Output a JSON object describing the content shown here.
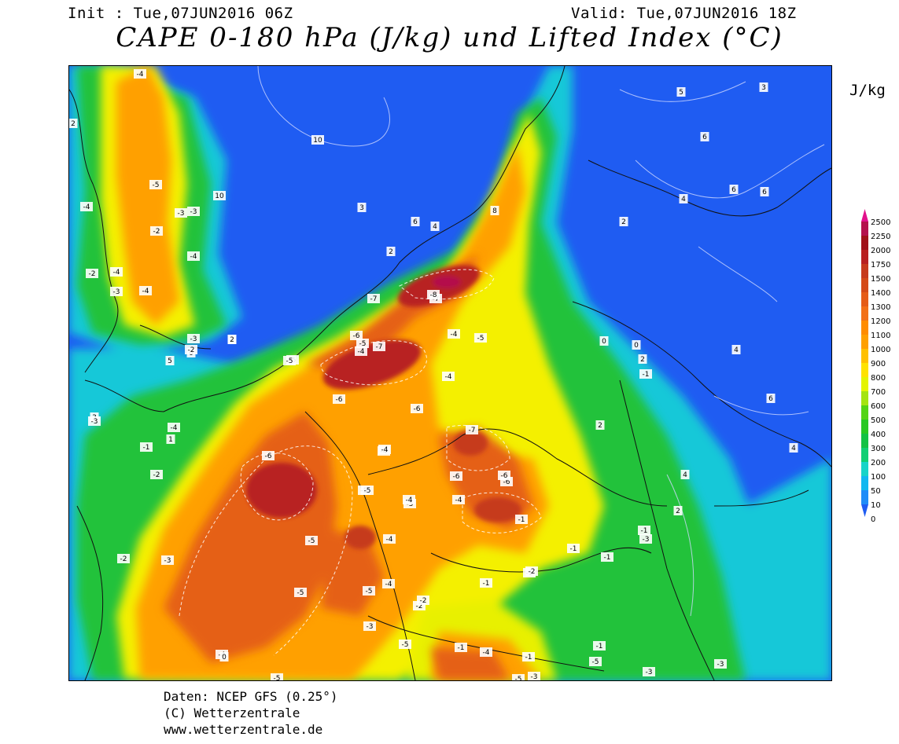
{
  "header": {
    "init": "Init : Tue,07JUN2016 06Z",
    "valid": "Valid: Tue,07JUN2016 18Z",
    "title": "CAPE 0-180 hPa (J/kg) und Lifted Index (°C)",
    "unit": "J/kg"
  },
  "legend": {
    "ticks": [
      "0",
      "10",
      "50",
      "100",
      "200",
      "300",
      "400",
      "500",
      "600",
      "700",
      "800",
      "900",
      "1000",
      "1100",
      "1200",
      "1300",
      "1400",
      "1500",
      "1750",
      "2000",
      "2250",
      "2500"
    ],
    "colors": [
      "#1f5cf2",
      "#1f8cf8",
      "#12b8f0",
      "#18d4c8",
      "#10cf74",
      "#12c244",
      "#28c822",
      "#54d414",
      "#a4e410",
      "#e4f400",
      "#ffe200",
      "#ffc000",
      "#ffa000",
      "#ff8c00",
      "#f27018",
      "#e55c18",
      "#d44a18",
      "#c63a1c",
      "#b82020",
      "#a01018",
      "#b4104c",
      "#e2108c"
    ]
  },
  "credits": {
    "line1": "Daten: NCEP GFS (0.25°)",
    "line2": "(C) Wetterzentrale",
    "line3": "www.wetterzentrale.de"
  },
  "lifted_index_labels": [
    "-4",
    "2",
    "10",
    "10",
    "3",
    "-5",
    "-2",
    "-3",
    "-2",
    "-3",
    "-4",
    "-4",
    "-4",
    "-4",
    "4",
    "0",
    "-5",
    "-3",
    "-4",
    "-5",
    "-5",
    "-7",
    "-7",
    "-8",
    "-6",
    "-7",
    "-6",
    "-5",
    "-4",
    "-4",
    "-5",
    "-4",
    "-6",
    "-4",
    "-6",
    "-7",
    "-4",
    "-5",
    "-4",
    "-6",
    "-6",
    "-6",
    "-5",
    "-5",
    "-4",
    "-5",
    "-4",
    "-3",
    "-5",
    "-4",
    "-3",
    "-2",
    "-1",
    "-4",
    "-3",
    "-2",
    "-2",
    "-1",
    "-2",
    "-1",
    "-1",
    "3",
    "5",
    "2",
    "1",
    "6",
    "4",
    "2",
    "8",
    "5",
    "3",
    "6",
    "4",
    "6",
    "6",
    "2",
    "0",
    "-1",
    "2",
    "4",
    "4",
    "6",
    "4",
    "2",
    "2",
    "0",
    "-1",
    "-3",
    "-1",
    "-2",
    "-1",
    "-5",
    "-1",
    "-3",
    "-3",
    "-4",
    "-1",
    "-5",
    "-3",
    "-5",
    "-1",
    "0",
    "-5",
    "-3",
    "-2"
  ]
}
